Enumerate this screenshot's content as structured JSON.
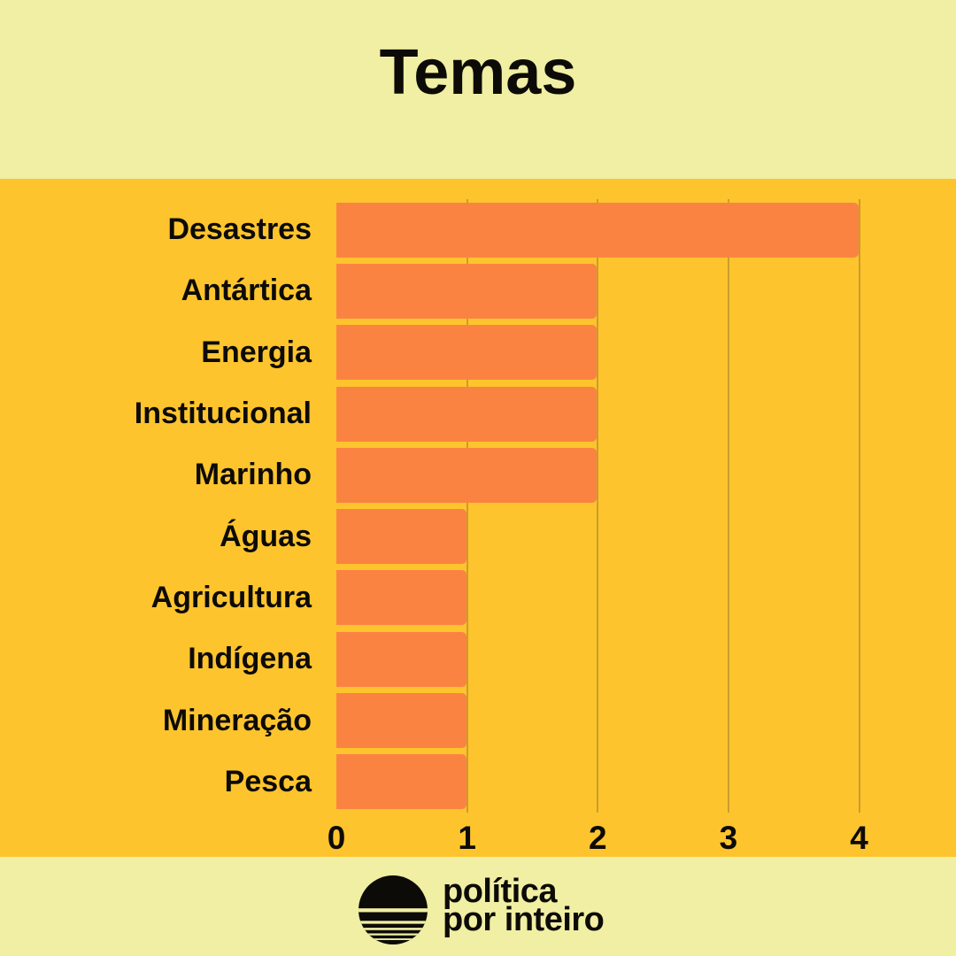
{
  "title": "Temas",
  "chart_data": {
    "type": "bar",
    "orientation": "horizontal",
    "title": "Temas",
    "categories": [
      "Desastres",
      "Antártica",
      "Energia",
      "Institucional",
      "Marinho",
      "Águas",
      "Agricultura",
      "Indígena",
      "Mineração",
      "Pesca"
    ],
    "values": [
      4,
      2,
      2,
      2,
      2,
      1,
      1,
      1,
      1,
      1
    ],
    "xlabel": "",
    "ylabel": "",
    "xlim": [
      0,
      4
    ],
    "xticks": [
      0,
      1,
      2,
      3,
      4
    ],
    "grid": "vertical gridlines at 1,2,3,4",
    "legend_position": "none"
  },
  "colors": {
    "band_background": "#F0EFA3",
    "chart_background": "#FDC42D",
    "bar": "#FB8342",
    "gridline": "#C99E2E",
    "text": "#0d0b07"
  },
  "footer": {
    "logo_icon": "sunset-stripes-circle-icon",
    "logo_line1": "política",
    "logo_line2": "por inteiro"
  }
}
